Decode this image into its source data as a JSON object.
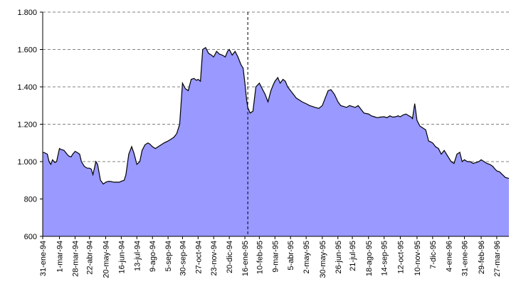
{
  "chart_data": {
    "type": "area",
    "title": "",
    "xlabel": "",
    "ylabel": "",
    "ylim": [
      600,
      1800
    ],
    "yticks": [
      {
        "value": 600,
        "label": "600"
      },
      {
        "value": 800,
        "label": "800"
      },
      {
        "value": 1000,
        "label": "1.000"
      },
      {
        "value": 1200,
        "label": "1.200"
      },
      {
        "value": 1400,
        "label": "1.400"
      },
      {
        "value": 1600,
        "label": "1.600"
      },
      {
        "value": 1800,
        "label": "1.800"
      }
    ],
    "grid": "horizontal-dashed",
    "legend": "none",
    "x_range": [
      "1994-01-31",
      "1996-04-17"
    ],
    "xtick_labels": [
      {
        "date": "1994-01-31",
        "label": "31-ene-94"
      },
      {
        "date": "1994-03-01",
        "label": "1-mar-94"
      },
      {
        "date": "1994-03-28",
        "label": "28-mar-94"
      },
      {
        "date": "1994-04-22",
        "label": "22-abr-94"
      },
      {
        "date": "1994-05-20",
        "label": "20-may-94"
      },
      {
        "date": "1994-06-16",
        "label": "16-jun-94"
      },
      {
        "date": "1994-07-13",
        "label": "13-jul-94"
      },
      {
        "date": "1994-08-09",
        "label": "9-ago-94"
      },
      {
        "date": "1994-09-05",
        "label": "5-sep-94"
      },
      {
        "date": "1994-09-30",
        "label": "30-sep-94"
      },
      {
        "date": "1994-10-27",
        "label": "27-oct-94"
      },
      {
        "date": "1994-11-23",
        "label": "23-nov-94"
      },
      {
        "date": "1994-12-20",
        "label": "20-dic-94"
      },
      {
        "date": "1995-01-16",
        "label": "16-ene-95"
      },
      {
        "date": "1995-02-10",
        "label": "10-feb-95"
      },
      {
        "date": "1995-03-09",
        "label": "9-mar-95"
      },
      {
        "date": "1995-04-05",
        "label": "5-abr-95"
      },
      {
        "date": "1995-05-02",
        "label": "2-may-95"
      },
      {
        "date": "1995-05-30",
        "label": "30-may-95"
      },
      {
        "date": "1995-06-26",
        "label": "26-jun-95"
      },
      {
        "date": "1995-07-21",
        "label": "21-jul-95"
      },
      {
        "date": "1995-08-18",
        "label": "18-ago-95"
      },
      {
        "date": "1995-09-14",
        "label": "14-sep-95"
      },
      {
        "date": "1995-10-12",
        "label": "12-oct-95"
      },
      {
        "date": "1995-11-10",
        "label": "10-nov-95"
      },
      {
        "date": "1995-12-07",
        "label": "7-dic-95"
      },
      {
        "date": "1996-01-04",
        "label": "4-ene-96"
      },
      {
        "date": "1996-01-31",
        "label": "31-ene-96"
      },
      {
        "date": "1996-02-29",
        "label": "29-feb-96"
      },
      {
        "date": "1996-03-27",
        "label": "27-mar-96"
      }
    ],
    "vertical_marker_date": "1995-01-21",
    "colors": {
      "fill": "#9999ff",
      "line": "#000000",
      "grid": "#808080",
      "marker": "#000000"
    },
    "series": [
      {
        "x": [
          "1994-01-31",
          "1994-02-03",
          "1994-02-08",
          "1994-02-11",
          "1994-02-14",
          "1994-02-17",
          "1994-02-21",
          "1994-02-24",
          "1994-03-01",
          "1994-03-04",
          "1994-03-09",
          "1994-03-14",
          "1994-03-17",
          "1994-03-21",
          "1994-03-24",
          "1994-03-28",
          "1994-03-31",
          "1994-04-05",
          "1994-04-08",
          "1994-04-13",
          "1994-04-18",
          "1994-04-22",
          "1994-04-25",
          "1994-04-28",
          "1994-05-03",
          "1994-05-06",
          "1994-05-11",
          "1994-05-16",
          "1994-05-20",
          "1994-05-25",
          "1994-05-30",
          "1994-06-03",
          "1994-06-08",
          "1994-06-13",
          "1994-06-16",
          "1994-06-21",
          "1994-06-24",
          "1994-06-29",
          "1994-07-04",
          "1994-07-08",
          "1994-07-13",
          "1994-07-18",
          "1994-07-22",
          "1994-07-27",
          "1994-08-01",
          "1994-08-04",
          "1994-08-09",
          "1994-08-14",
          "1994-08-19",
          "1994-08-24",
          "1994-08-29",
          "1994-09-05",
          "1994-09-10",
          "1994-09-15",
          "1994-09-20",
          "1994-09-25",
          "1994-09-30",
          "1994-10-05",
          "1994-10-10",
          "1994-10-15",
          "1994-10-20",
          "1994-10-24",
          "1994-10-27",
          "1994-10-31",
          "1994-11-04",
          "1994-11-09",
          "1994-11-14",
          "1994-11-19",
          "1994-11-23",
          "1994-11-28",
          "1994-12-03",
          "1994-12-08",
          "1994-12-13",
          "1994-12-17",
          "1994-12-20",
          "1994-12-25",
          "1994-12-30",
          "1995-01-04",
          "1995-01-09",
          "1995-01-13",
          "1995-01-16",
          "1995-01-19",
          "1995-01-21",
          "1995-01-25",
          "1995-01-30",
          "1995-02-04",
          "1995-02-07",
          "1995-02-10",
          "1995-02-15",
          "1995-02-20",
          "1995-02-25",
          "1995-03-02",
          "1995-03-06",
          "1995-03-09",
          "1995-03-14",
          "1995-03-18",
          "1995-03-23",
          "1995-03-27",
          "1995-03-31",
          "1995-04-05",
          "1995-04-10",
          "1995-04-15",
          "1995-04-20",
          "1995-04-25",
          "1995-05-02",
          "1995-05-08",
          "1995-05-13",
          "1995-05-18",
          "1995-05-24",
          "1995-05-30",
          "1995-06-04",
          "1995-06-09",
          "1995-06-14",
          "1995-06-20",
          "1995-06-26",
          "1995-07-01",
          "1995-07-06",
          "1995-07-11",
          "1995-07-16",
          "1995-07-21",
          "1995-07-26",
          "1995-07-31",
          "1995-08-05",
          "1995-08-10",
          "1995-08-18",
          "1995-08-23",
          "1995-08-28",
          "1995-09-02",
          "1995-09-07",
          "1995-09-14",
          "1995-09-19",
          "1995-09-24",
          "1995-09-29",
          "1995-10-04",
          "1995-10-08",
          "1995-10-12",
          "1995-10-17",
          "1995-10-22",
          "1995-10-27",
          "1995-10-30",
          "1995-11-02",
          "1995-11-06",
          "1995-11-10",
          "1995-11-15",
          "1995-11-20",
          "1995-11-25",
          "1995-11-30",
          "1995-12-04",
          "1995-12-07",
          "1995-12-12",
          "1995-12-17",
          "1995-12-22",
          "1995-12-27",
          "1996-01-04",
          "1996-01-08",
          "1996-01-13",
          "1996-01-18",
          "1996-01-23",
          "1996-01-27",
          "1996-01-31",
          "1996-02-05",
          "1996-02-10",
          "1996-02-15",
          "1996-02-20",
          "1996-02-25",
          "1996-02-29",
          "1996-03-05",
          "1996-03-10",
          "1996-03-15",
          "1996-03-20",
          "1996-03-24",
          "1996-03-27",
          "1996-04-01",
          "1996-04-06",
          "1996-04-11",
          "1996-04-17"
        ],
        "y": [
          1050,
          1048,
          1040,
          1000,
          985,
          1010,
          995,
          1000,
          1070,
          1065,
          1060,
          1040,
          1030,
          1025,
          1040,
          1055,
          1050,
          1040,
          1000,
          975,
          965,
          965,
          960,
          930,
          1000,
          985,
          900,
          880,
          890,
          895,
          893,
          890,
          890,
          890,
          895,
          900,
          930,
          1040,
          1080,
          1045,
          985,
          1000,
          1060,
          1090,
          1100,
          1095,
          1080,
          1070,
          1080,
          1090,
          1100,
          1110,
          1120,
          1130,
          1150,
          1200,
          1420,
          1390,
          1380,
          1440,
          1445,
          1435,
          1440,
          1430,
          1600,
          1610,
          1580,
          1570,
          1560,
          1590,
          1575,
          1570,
          1560,
          1590,
          1600,
          1570,
          1590,
          1560,
          1520,
          1500,
          1420,
          1330,
          1290,
          1260,
          1270,
          1400,
          1410,
          1420,
          1390,
          1360,
          1320,
          1380,
          1410,
          1430,
          1450,
          1420,
          1440,
          1430,
          1400,
          1380,
          1360,
          1340,
          1330,
          1320,
          1310,
          1300,
          1295,
          1290,
          1285,
          1300,
          1340,
          1380,
          1385,
          1360,
          1320,
          1300,
          1295,
          1290,
          1300,
          1295,
          1290,
          1300,
          1280,
          1260,
          1255,
          1245,
          1240,
          1235,
          1238,
          1240,
          1235,
          1245,
          1238,
          1240,
          1245,
          1240,
          1250,
          1255,
          1245,
          1240,
          1230,
          1310,
          1220,
          1190,
          1180,
          1170,
          1110,
          1105,
          1100,
          1080,
          1070,
          1040,
          1060,
          1020,
          1000,
          990,
          1040,
          1050,
          1000,
          1010,
          1000,
          1000,
          990,
          995,
          1000,
          1010,
          1000,
          990,
          985,
          975,
          960,
          950,
          945,
          930,
          915,
          910
        ]
      }
    ]
  }
}
